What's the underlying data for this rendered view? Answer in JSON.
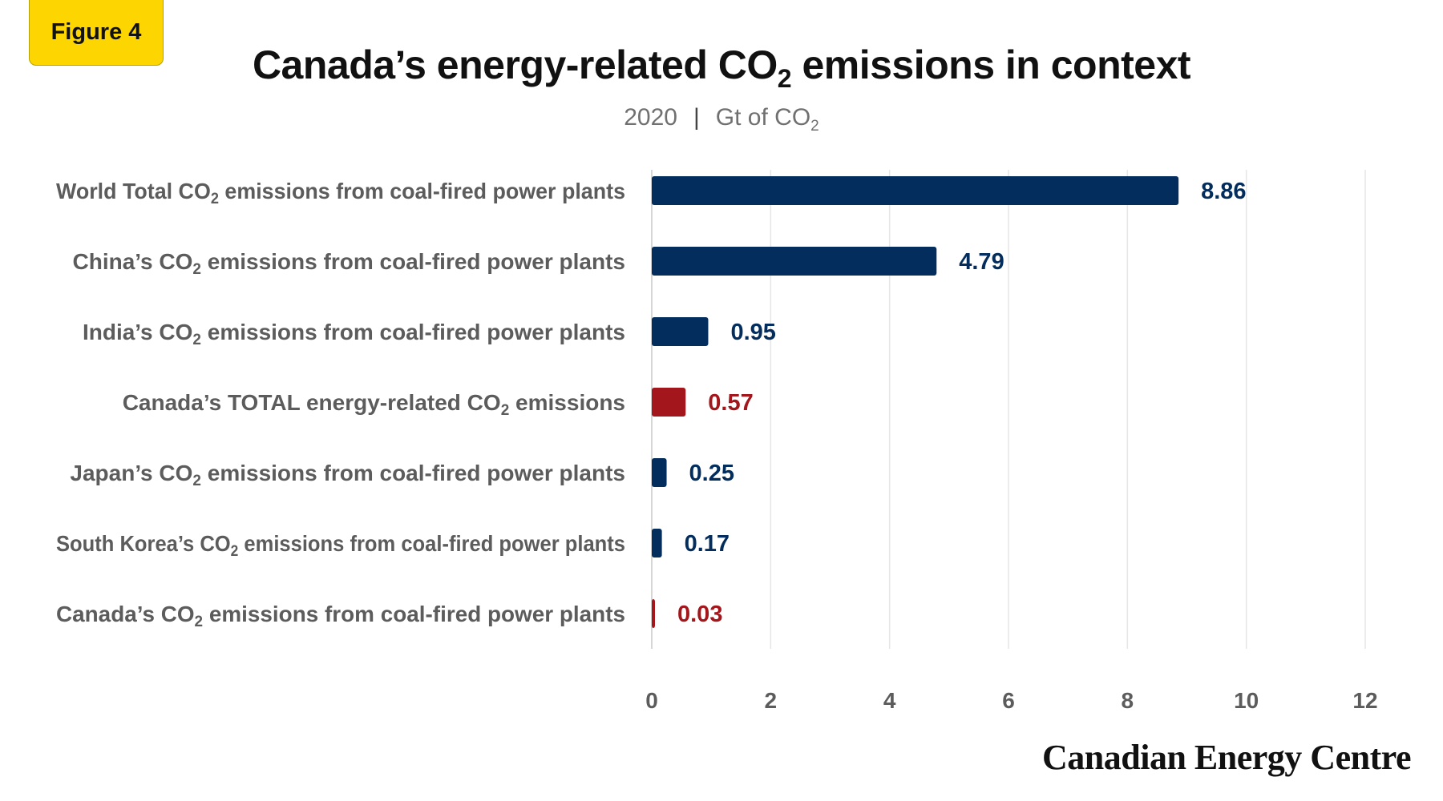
{
  "badge": "Figure 4",
  "title": {
    "before": "Canada’s energy-related CO",
    "sub": "2",
    "after": " emissions in context"
  },
  "subtitle": {
    "year": "2020",
    "separator": "|",
    "unit_before": "Gt of CO",
    "unit_sub": "2"
  },
  "brand": "Canadian Energy Centre",
  "colors": {
    "navy": "#032d5c",
    "red": "#a3161b",
    "label": "#5c5c5c",
    "grid": "#e6e6e6"
  },
  "chart_data": {
    "type": "bar",
    "orientation": "horizontal",
    "categories": [
      {
        "before": "World Total CO",
        "sub": "2",
        "after": " emissions from coal-fired power plants"
      },
      {
        "before": "China’s CO",
        "sub": "2",
        "after": " emissions from coal-fired power plants"
      },
      {
        "before": "India’s CO",
        "sub": "2",
        "after": " emissions from coal-fired power plants"
      },
      {
        "before": "Canada’s TOTAL energy-related CO",
        "sub": "2",
        "after": " emissions"
      },
      {
        "before": "Japan’s CO",
        "sub": "2",
        "after": " emissions from coal-fired power plants"
      },
      {
        "before": "South Korea’s CO",
        "sub": "2",
        "after": " emissions from coal-fired power plants"
      },
      {
        "before": "Canada’s CO",
        "sub": "2",
        "after": " emissions from coal-fired power plants"
      }
    ],
    "values": [
      8.86,
      4.79,
      0.95,
      0.57,
      0.25,
      0.17,
      0.03
    ],
    "value_labels": [
      "8.86",
      "4.79",
      "0.95",
      "0.57",
      "0.25",
      "0.17",
      "0.03"
    ],
    "bar_colors": [
      "navy",
      "navy",
      "navy",
      "red",
      "navy",
      "navy",
      "red"
    ],
    "xlim": [
      0,
      12
    ],
    "xticks": [
      0,
      2,
      4,
      6,
      8,
      10,
      12
    ],
    "grid": true
  }
}
